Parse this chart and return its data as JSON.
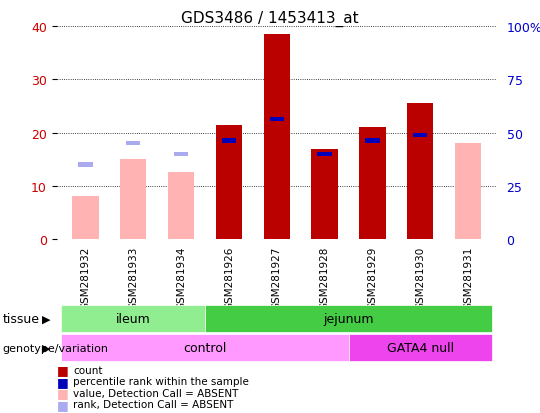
{
  "title": "GDS3486 / 1453413_at",
  "samples": [
    "GSM281932",
    "GSM281933",
    "GSM281934",
    "GSM281926",
    "GSM281927",
    "GSM281928",
    "GSM281929",
    "GSM281930",
    "GSM281931"
  ],
  "count_values": [
    null,
    null,
    null,
    21.5,
    38.5,
    17.0,
    21.0,
    25.5,
    null
  ],
  "percentile_rank": [
    null,
    null,
    null,
    18.5,
    22.5,
    16.0,
    18.5,
    19.5,
    null
  ],
  "absent_value": [
    8.0,
    15.0,
    12.5,
    null,
    null,
    null,
    null,
    null,
    18.0
  ],
  "absent_rank": [
    14.0,
    18.0,
    16.0,
    null,
    null,
    null,
    null,
    null,
    null
  ],
  "ylim": [
    0,
    40
  ],
  "y2lim": [
    0,
    100
  ],
  "yticks": [
    0,
    10,
    20,
    30,
    40
  ],
  "y2ticks": [
    0,
    25,
    50,
    75,
    100
  ],
  "tissue_groups": [
    {
      "label": "ileum",
      "start": 0,
      "end": 2,
      "color": "#90ee90"
    },
    {
      "label": "jejunum",
      "start": 3,
      "end": 8,
      "color": "#44cc44"
    }
  ],
  "genotype_groups": [
    {
      "label": "control",
      "start": 0,
      "end": 5,
      "color": "#ff99ff"
    },
    {
      "label": "GATA4 null",
      "start": 6,
      "end": 8,
      "color": "#ee44ee"
    }
  ],
  "bar_color_count": "#bb0000",
  "bar_color_rank": "#0000bb",
  "bar_color_absent_value": "#ffb3b3",
  "bar_color_absent_rank": "#aaaaee",
  "legend_items": [
    {
      "color": "#bb0000",
      "label": "count"
    },
    {
      "color": "#0000bb",
      "label": "percentile rank within the sample"
    },
    {
      "color": "#ffb3b3",
      "label": "value, Detection Call = ABSENT"
    },
    {
      "color": "#aaaaee",
      "label": "rank, Detection Call = ABSENT"
    }
  ],
  "axis_label_color_left": "#cc0000",
  "axis_label_color_right": "#0000cc"
}
